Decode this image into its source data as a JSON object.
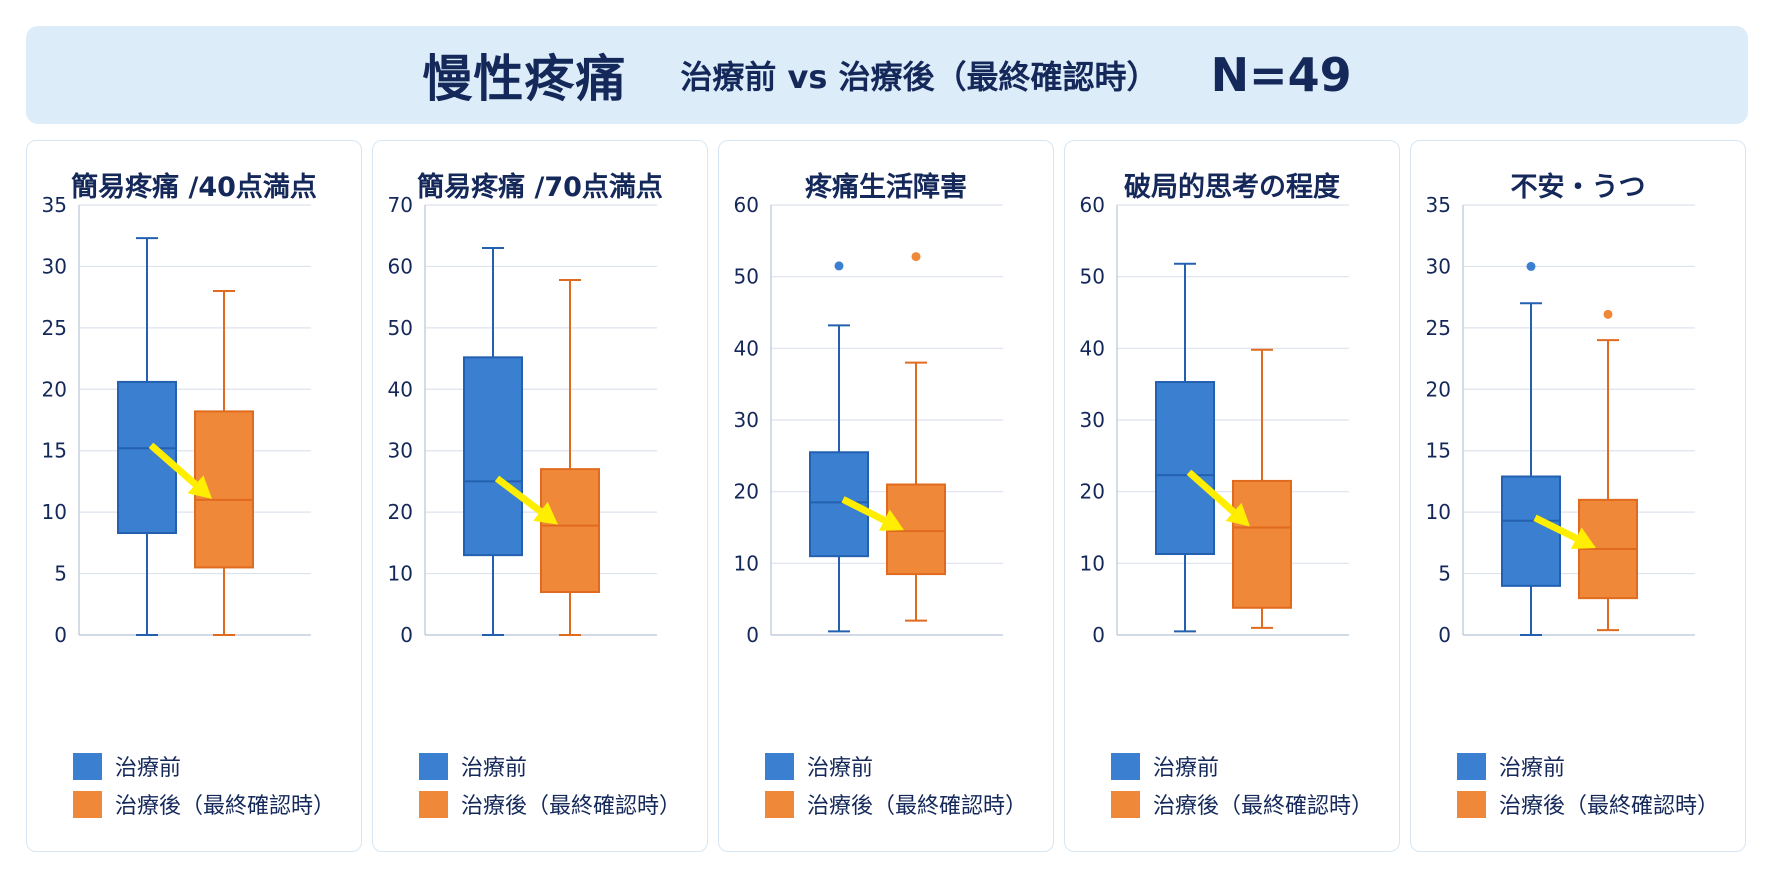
{
  "header": {
    "title": "慢性疼痛",
    "subtitle": "治療前 vs 治療後（最終確認時）",
    "n_label": "N=49"
  },
  "colors": {
    "before": "#3a7fd0",
    "before_stroke": "#2460b0",
    "after": "#f0883a",
    "after_stroke": "#e06a1e",
    "arrow": "#ffee00",
    "grid": "#dde3ee"
  },
  "legend": {
    "before": "治療前",
    "after": "治療後（最終確認時）"
  },
  "chart_data": [
    {
      "type": "box",
      "title": "簡易疼痛 /40点満点",
      "ylim": [
        0,
        35
      ],
      "yticks": [
        0,
        5,
        10,
        15,
        20,
        25,
        30,
        35
      ],
      "grid": true,
      "series": [
        {
          "name": "治療前",
          "min": 0,
          "q1": 8.3,
          "median": 15.2,
          "q3": 20.6,
          "max": 32.3,
          "outliers": []
        },
        {
          "name": "治療後（最終確認時）",
          "min": 0,
          "q1": 5.5,
          "median": 11.0,
          "q3": 18.2,
          "max": 28.0,
          "outliers": []
        }
      ]
    },
    {
      "type": "box",
      "title": "簡易疼痛 /70点満点",
      "ylim": [
        0,
        70
      ],
      "yticks": [
        0,
        10,
        20,
        30,
        40,
        50,
        60,
        70
      ],
      "grid": true,
      "series": [
        {
          "name": "治療前",
          "min": 0,
          "q1": 13.0,
          "median": 25.0,
          "q3": 45.2,
          "max": 63.0,
          "outliers": []
        },
        {
          "name": "治療後（最終確認時）",
          "min": 0,
          "q1": 7.0,
          "median": 17.8,
          "q3": 27.0,
          "max": 57.8,
          "outliers": []
        }
      ]
    },
    {
      "type": "box",
      "title": "疼痛生活障害",
      "ylim": [
        0,
        60
      ],
      "yticks": [
        0,
        10,
        20,
        30,
        40,
        50,
        60
      ],
      "grid": true,
      "series": [
        {
          "name": "治療前",
          "min": 0.5,
          "q1": 11.0,
          "median": 18.5,
          "q3": 25.5,
          "max": 43.2,
          "outliers": [
            51.5
          ]
        },
        {
          "name": "治療後（最終確認時）",
          "min": 2.0,
          "q1": 8.5,
          "median": 14.5,
          "q3": 21.0,
          "max": 38.0,
          "outliers": [
            52.8
          ]
        }
      ]
    },
    {
      "type": "box",
      "title": "破局的思考の程度",
      "ylim": [
        0,
        60
      ],
      "yticks": [
        0,
        10,
        20,
        30,
        40,
        50,
        60
      ],
      "grid": true,
      "series": [
        {
          "name": "治療前",
          "min": 0.5,
          "q1": 11.3,
          "median": 22.3,
          "q3": 35.3,
          "max": 51.8,
          "outliers": []
        },
        {
          "name": "治療後（最終確認時）",
          "min": 1.0,
          "q1": 3.8,
          "median": 15.0,
          "q3": 21.5,
          "max": 39.8,
          "outliers": []
        }
      ]
    },
    {
      "type": "box",
      "title": "不安・うつ",
      "ylim": [
        0,
        35
      ],
      "yticks": [
        0,
        5,
        10,
        15,
        20,
        25,
        30,
        35
      ],
      "grid": true,
      "series": [
        {
          "name": "治療前",
          "min": 0,
          "q1": 4.0,
          "median": 9.3,
          "q3": 12.9,
          "max": 27.0,
          "outliers": [
            30.0
          ]
        },
        {
          "name": "治療後（最終確認時）",
          "min": 0.4,
          "q1": 3.0,
          "median": 7.0,
          "q3": 11.0,
          "max": 24.0,
          "outliers": [
            26.1
          ]
        }
      ]
    }
  ]
}
